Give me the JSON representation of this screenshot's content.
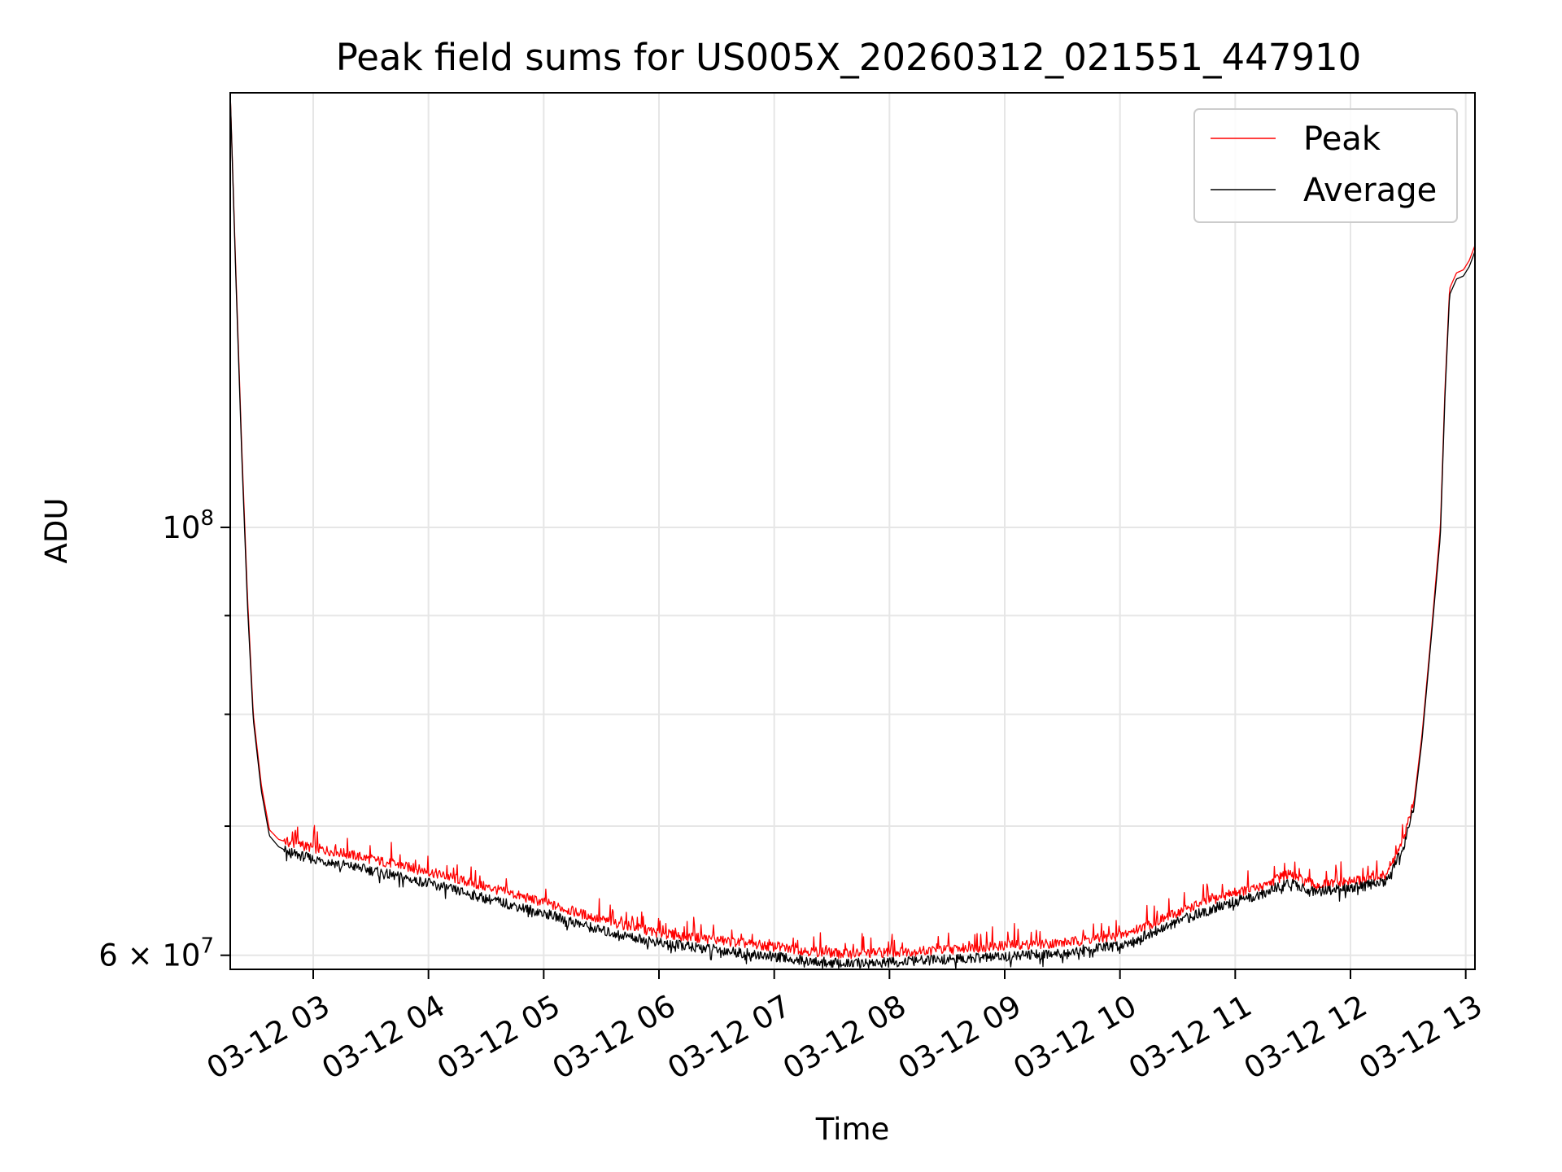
{
  "chart_data": {
    "type": "line",
    "title": "Peak field sums for US005X_20260312_021551_447910",
    "xlabel": "Time",
    "ylabel": "ADU",
    "yscale": "log",
    "grid": true,
    "legend_position": "top-right",
    "x_units": "hours since 03-12 00:00",
    "xlim": [
      2.28,
      13.08
    ],
    "ylim": [
      59000000,
      168000000
    ],
    "x_ticks": [
      3,
      4,
      5,
      6,
      7,
      8,
      9,
      10,
      11,
      12,
      13
    ],
    "x_tick_labels": [
      "03-12 03",
      "03-12 04",
      "03-12 05",
      "03-12 06",
      "03-12 07",
      "03-12 08",
      "03-12 09",
      "03-12 10",
      "03-12 11",
      "03-12 12",
      "03-12 13"
    ],
    "y_major_ticks": [
      {
        "value": 60000000,
        "base": "6 × 10",
        "exp": "7"
      },
      {
        "value": 100000000,
        "base": "10",
        "exp": "8"
      }
    ],
    "y_minor_ticks": [
      70000000,
      80000000,
      90000000
    ],
    "series": [
      {
        "name": "Peak",
        "color": "#ff0000",
        "x": [
          2.28,
          2.33,
          2.38,
          2.43,
          2.48,
          2.55,
          2.62,
          2.7,
          2.8,
          3.0,
          3.3,
          3.6,
          4.0,
          4.5,
          5.0,
          5.5,
          6.0,
          6.5,
          7.0,
          7.3,
          7.6,
          8.0,
          8.5,
          9.0,
          9.5,
          10.0,
          10.3,
          10.6,
          11.0,
          11.2,
          11.45,
          11.7,
          12.0,
          12.3,
          12.45,
          12.55,
          12.62,
          12.7,
          12.78,
          12.82,
          12.86,
          12.92,
          12.98,
          13.03,
          13.08
        ],
        "y": [
          168000000,
          135000000,
          110000000,
          92000000,
          80000000,
          73500000,
          69700000,
          68900000,
          68600000,
          68200000,
          67700000,
          67100000,
          66300000,
          65100000,
          63900000,
          62600000,
          61600000,
          61100000,
          60600000,
          60300000,
          60100000,
          60200000,
          60400000,
          60700000,
          60900000,
          61400000,
          62400000,
          63500000,
          64700000,
          65000000,
          66100000,
          65200000,
          65500000,
          66000000,
          68500000,
          72000000,
          78000000,
          88000000,
          100000000,
          118000000,
          133000000,
          135500000,
          136000000,
          137500000,
          140000000
        ]
      },
      {
        "name": "Average",
        "color": "#000000",
        "x": [
          2.28,
          2.33,
          2.38,
          2.43,
          2.48,
          2.55,
          2.62,
          2.7,
          2.8,
          3.0,
          3.3,
          3.6,
          4.0,
          4.5,
          5.0,
          5.5,
          6.0,
          6.5,
          7.0,
          7.3,
          7.6,
          8.0,
          8.5,
          9.0,
          9.5,
          10.0,
          10.3,
          10.6,
          11.0,
          11.2,
          11.45,
          11.7,
          12.0,
          12.3,
          12.45,
          12.55,
          12.62,
          12.7,
          12.78,
          12.82,
          12.86,
          12.92,
          12.98,
          13.03,
          13.08
        ],
        "y": [
          168000000,
          134000000,
          109000000,
          91000000,
          79500000,
          73000000,
          69200000,
          68300000,
          67800000,
          67300000,
          66800000,
          66200000,
          65400000,
          64200000,
          63100000,
          61800000,
          60900000,
          60400000,
          59900000,
          59600000,
          59400000,
          59500000,
          59700000,
          59900000,
          60200000,
          60700000,
          61700000,
          62800000,
          64000000,
          64400000,
          65500000,
          64700000,
          65000000,
          65500000,
          68000000,
          71500000,
          77500000,
          87500000,
          99000000,
          117000000,
          132000000,
          134500000,
          135000000,
          136500000,
          139000000
        ]
      }
    ]
  }
}
